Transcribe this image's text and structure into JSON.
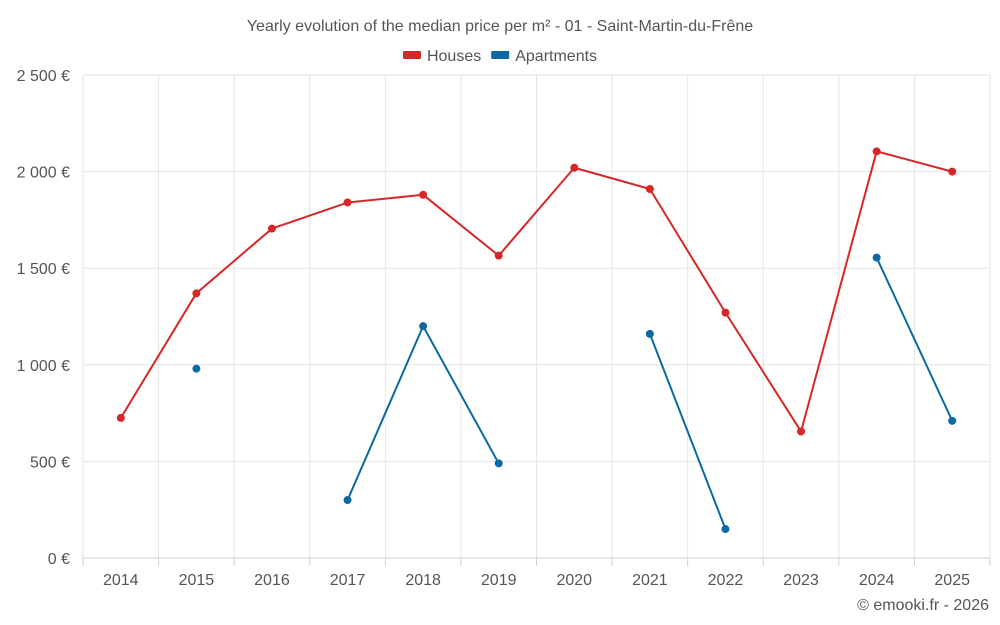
{
  "chart_data": {
    "type": "line",
    "title": "Yearly evolution of the median price per m² - 01 - Saint-Martin-du-Frêne",
    "categories": [
      "2014",
      "2015",
      "2016",
      "2017",
      "2018",
      "2019",
      "2020",
      "2021",
      "2022",
      "2023",
      "2024",
      "2025"
    ],
    "series": [
      {
        "name": "Houses",
        "color": "#d62728",
        "values": [
          725,
          1370,
          1705,
          1840,
          1880,
          1565,
          2020,
          1910,
          1270,
          655,
          2105,
          2000
        ]
      },
      {
        "name": "Apartments",
        "color": "#0a6aa1",
        "values": [
          null,
          980,
          null,
          300,
          1200,
          490,
          null,
          1160,
          150,
          null,
          1555,
          710
        ]
      }
    ],
    "ylim": [
      0,
      2500
    ],
    "yticks": [
      0,
      500,
      1000,
      1500,
      2000,
      2500
    ],
    "ytick_labels": [
      "0 €",
      "500 €",
      "1 000 €",
      "1 500 €",
      "2 000 €",
      "2 500 €"
    ],
    "grid": true,
    "legend_position": "top-center",
    "credit": "© emooki.fr - 2026"
  }
}
